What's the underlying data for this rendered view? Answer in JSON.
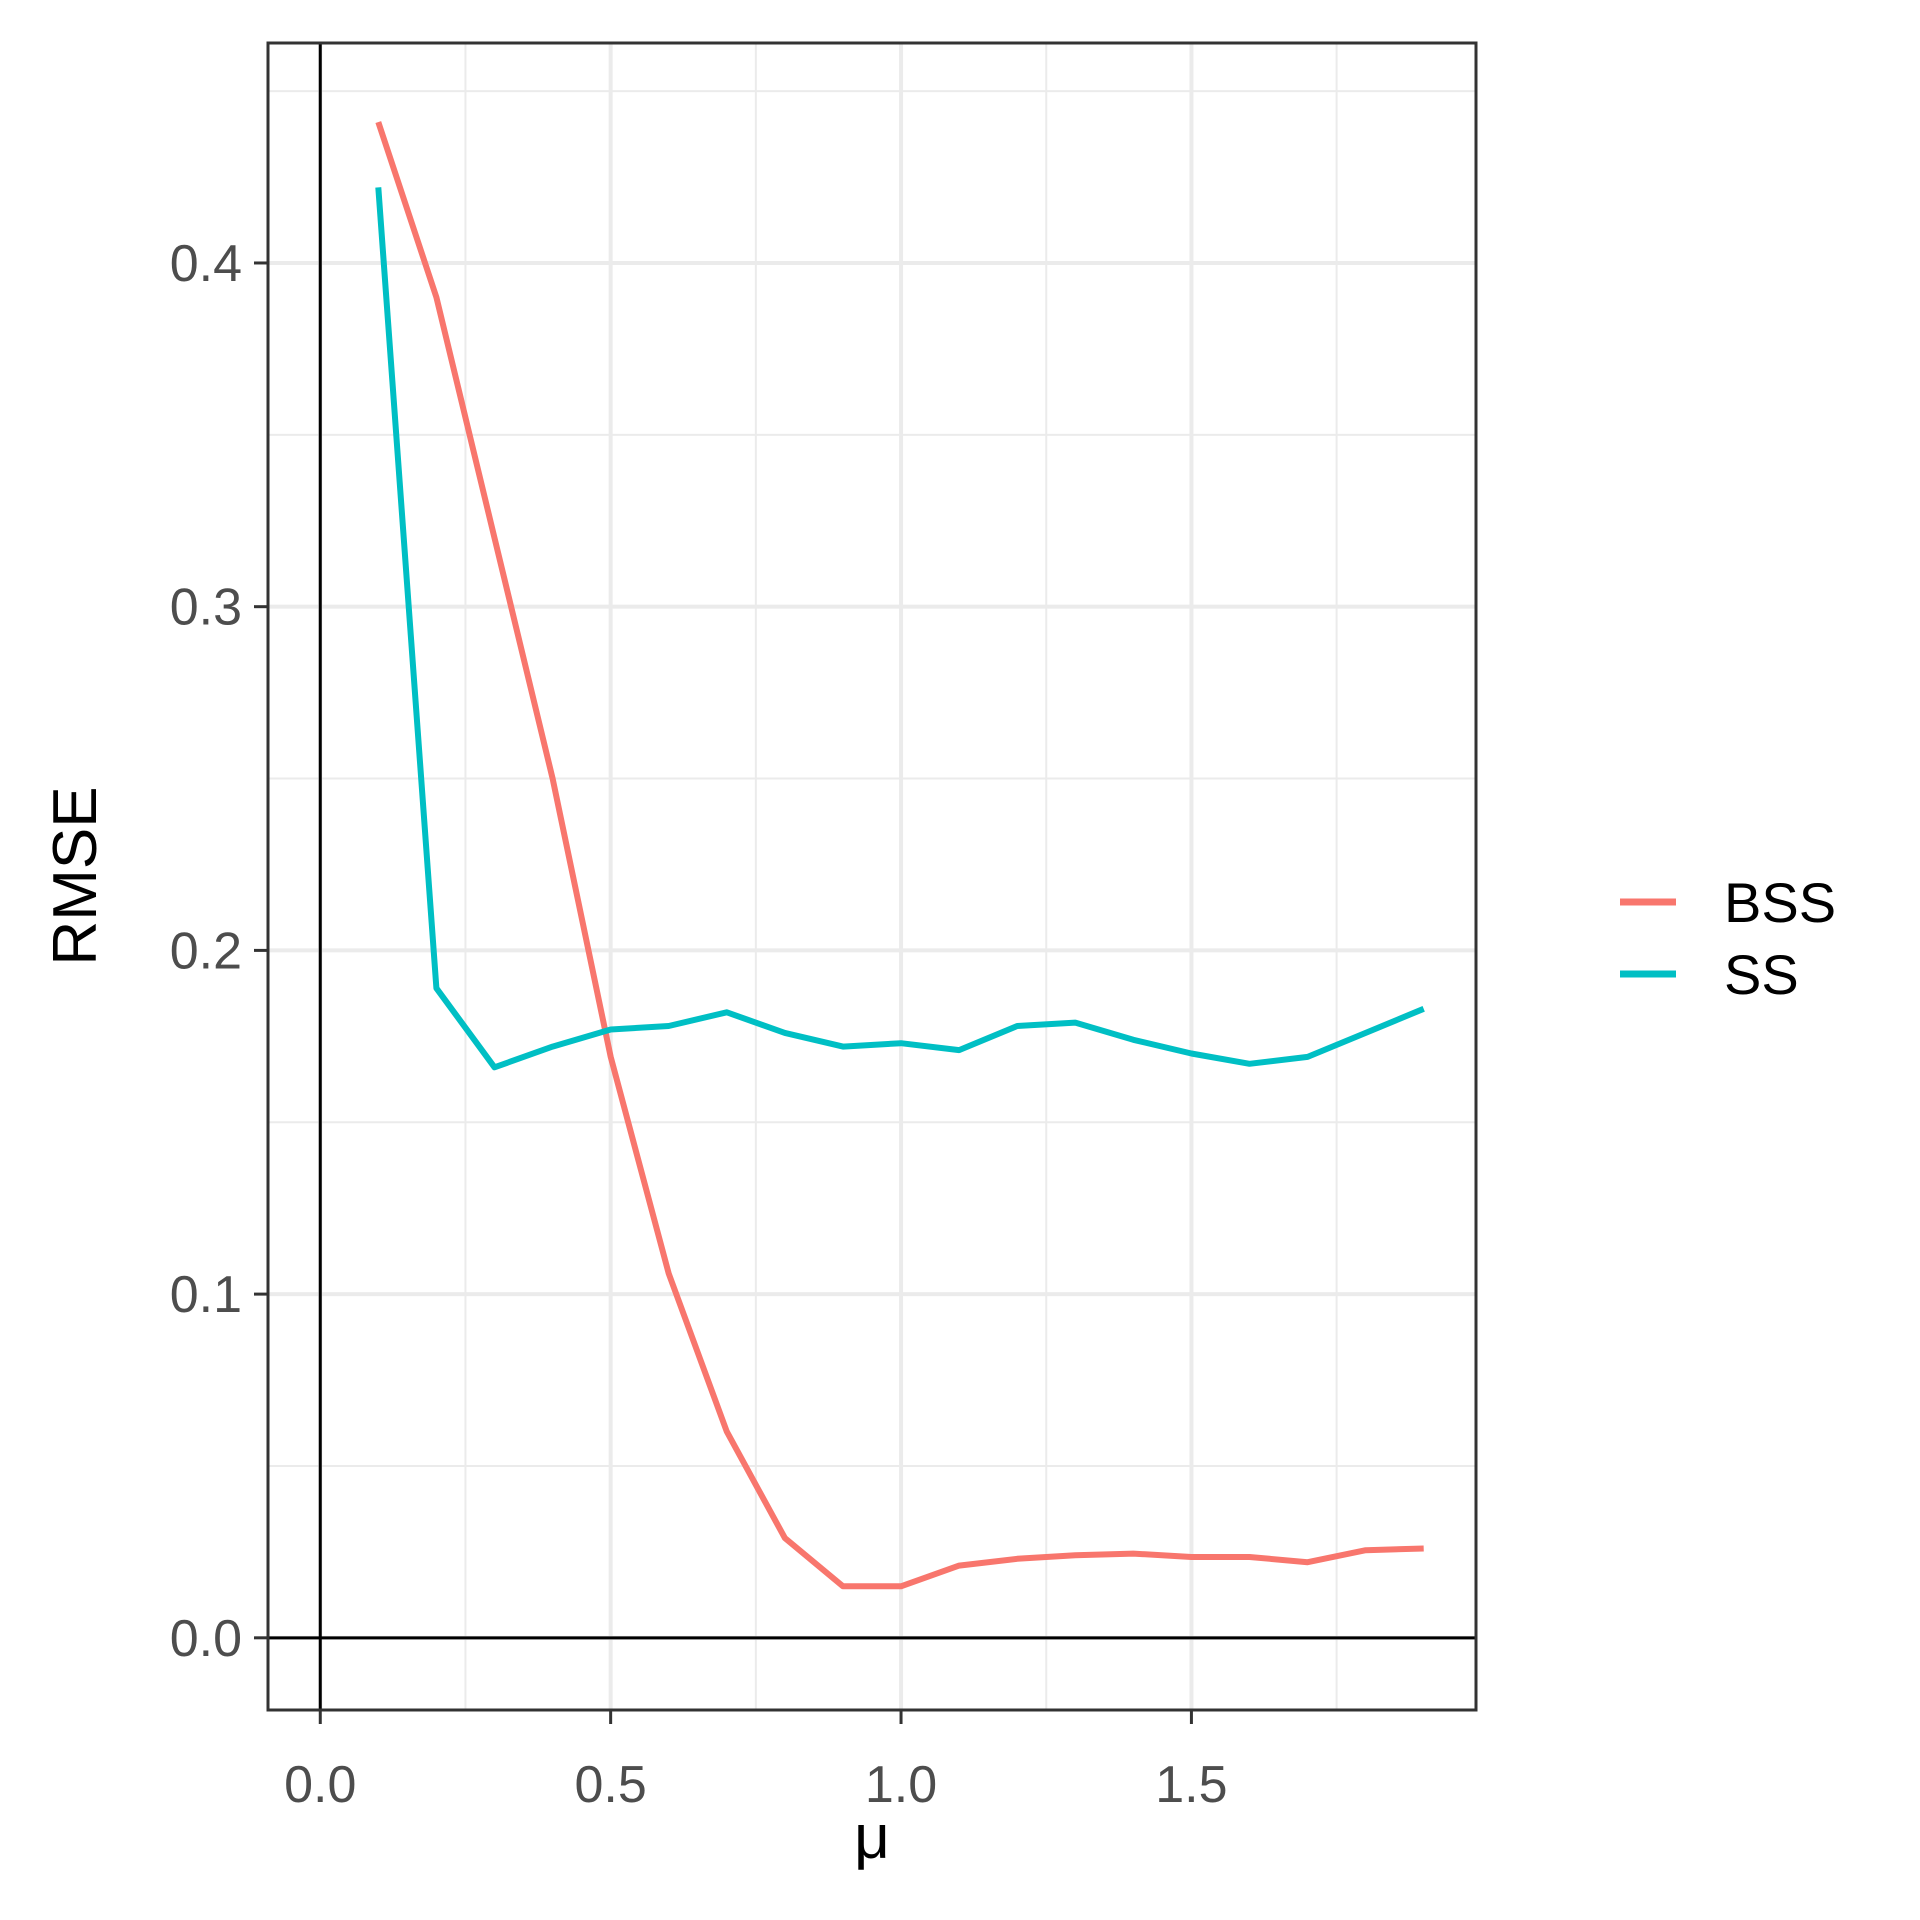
{
  "chart_data": {
    "type": "line",
    "xlabel": "μ",
    "ylabel": "RMSE",
    "xlim": [
      -0.09,
      1.99
    ],
    "ylim": [
      -0.021,
      0.464
    ],
    "x_ticks": [
      0.0,
      0.5,
      1.0,
      1.5
    ],
    "x_tick_labels": [
      "0.0",
      "0.5",
      "1.0",
      "1.5"
    ],
    "y_ticks": [
      0.0,
      0.1,
      0.2,
      0.3,
      0.4
    ],
    "y_tick_labels": [
      "0.0",
      "0.1",
      "0.2",
      "0.3",
      "0.4"
    ],
    "x_minor_ticks": [
      0.25,
      0.75,
      1.25,
      1.75
    ],
    "y_minor_ticks": [
      0.05,
      0.15,
      0.25,
      0.35,
      0.45
    ],
    "grid": true,
    "reference_lines": {
      "x": 0,
      "y": 0
    },
    "legend_position": "right",
    "x": [
      0.1,
      0.2,
      0.3,
      0.4,
      0.5,
      0.6,
      0.7,
      0.8,
      0.9,
      1.0,
      1.1,
      1.2,
      1.3,
      1.4,
      1.5,
      1.6,
      1.7,
      1.8,
      1.9
    ],
    "series": [
      {
        "name": "BSS",
        "color": "#F8766D",
        "values": [
          0.441,
          0.39,
          0.32,
          0.25,
          0.169,
          0.106,
          0.06,
          0.029,
          0.015,
          0.015,
          0.021,
          0.023,
          0.024,
          0.0245,
          0.0235,
          0.0235,
          0.022,
          0.0255,
          0.026
        ]
      },
      {
        "name": "SS",
        "color": "#00BFC4",
        "values": [
          0.422,
          0.189,
          0.166,
          0.172,
          0.177,
          0.178,
          0.182,
          0.176,
          0.172,
          0.173,
          0.171,
          0.178,
          0.179,
          0.174,
          0.17,
          0.167,
          0.169,
          0.176,
          0.183
        ]
      }
    ]
  }
}
